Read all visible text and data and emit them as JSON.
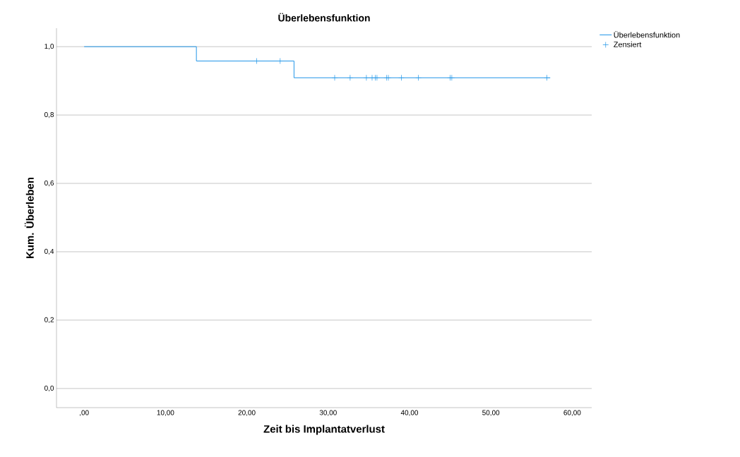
{
  "chart_data": {
    "type": "step",
    "title": "Überlebensfunktion",
    "xlabel": "Zeit bis Implantatverlust",
    "ylabel": "Kum. Überleben",
    "series": [
      {
        "name": "Überlebensfunktion",
        "type": "step",
        "color": "#2196e8",
        "marker": "none",
        "x": [
          0,
          13.8,
          25.8,
          57.3
        ],
        "values": [
          1.0,
          0.958,
          0.909,
          0.909
        ]
      },
      {
        "name": "Zensiert",
        "type": "scatter",
        "color": "#2196e8",
        "marker": "cross",
        "x": [
          21.2,
          24.1,
          30.8,
          32.7,
          34.7,
          35.4,
          35.8,
          36.0,
          37.2,
          37.4,
          39.0,
          41.1,
          45.0,
          45.2,
          56.9
        ],
        "values": [
          0.958,
          0.958,
          0.909,
          0.909,
          0.909,
          0.909,
          0.909,
          0.909,
          0.909,
          0.909,
          0.909,
          0.909,
          0.909,
          0.909,
          0.909
        ]
      }
    ],
    "xlim": [
      -3.4,
      62.4
    ],
    "ylim": [
      -0.056,
      1.054
    ],
    "xticks": [
      {
        "value": 0,
        "label": ",00"
      },
      {
        "value": 10,
        "label": "10,00"
      },
      {
        "value": 20,
        "label": "20,00"
      },
      {
        "value": 30,
        "label": "30,00"
      },
      {
        "value": 40,
        "label": "40,00"
      },
      {
        "value": 50,
        "label": "50,00"
      },
      {
        "value": 60,
        "label": "60,00"
      }
    ],
    "yticks": [
      {
        "value": 0,
        "label": "0,0"
      },
      {
        "value": 0.2,
        "label": "0,2"
      },
      {
        "value": 0.4,
        "label": "0,4"
      },
      {
        "value": 0.6,
        "label": "0,6"
      },
      {
        "value": 0.8,
        "label": "0,8"
      },
      {
        "value": 1.0,
        "label": "1,0"
      }
    ],
    "grid": "y",
    "legend": "top right"
  }
}
